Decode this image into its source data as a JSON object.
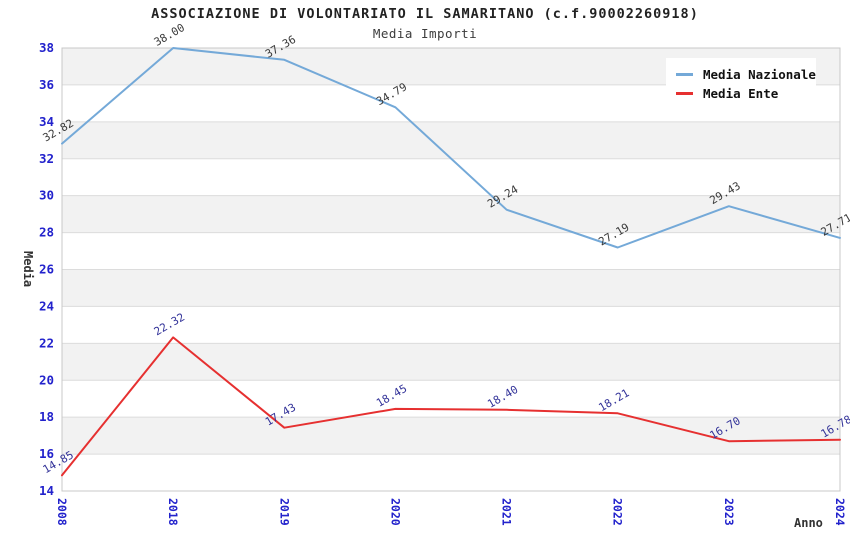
{
  "chart_data": {
    "type": "line",
    "title": "ASSOCIAZIONE DI VOLONTARIATO IL SAMARITANO (c.f.90002260918)",
    "subtitle": "Media Importi",
    "xlabel": "Anno",
    "ylabel": "Media",
    "categories": [
      "2008",
      "2018",
      "2019",
      "2020",
      "2021",
      "2022",
      "2023",
      "2024"
    ],
    "series": [
      {
        "name": "Media Nazionale",
        "color": "#74a9d8",
        "label_color": "#3a3a3a",
        "values": [
          32.82,
          38.0,
          37.36,
          34.79,
          29.24,
          27.19,
          29.43,
          27.71
        ]
      },
      {
        "name": "Media Ente",
        "color": "#e63030",
        "label_color": "#333399",
        "values": [
          14.85,
          22.32,
          17.43,
          18.45,
          18.4,
          18.21,
          16.7,
          16.78
        ]
      }
    ],
    "ylim": [
      14,
      38
    ],
    "ytick_step": 2,
    "grid": "horizontal-bands-alternating",
    "legend_position": "top-right",
    "colors": {
      "tick_label": "#2222cc",
      "band": "#f2f2f2",
      "grid_line": "#dcdcdc",
      "plot_border": "#c8c8c8",
      "axis_title": "#333333",
      "background": "#ffffff",
      "legend_bg": "#ffffff"
    }
  }
}
